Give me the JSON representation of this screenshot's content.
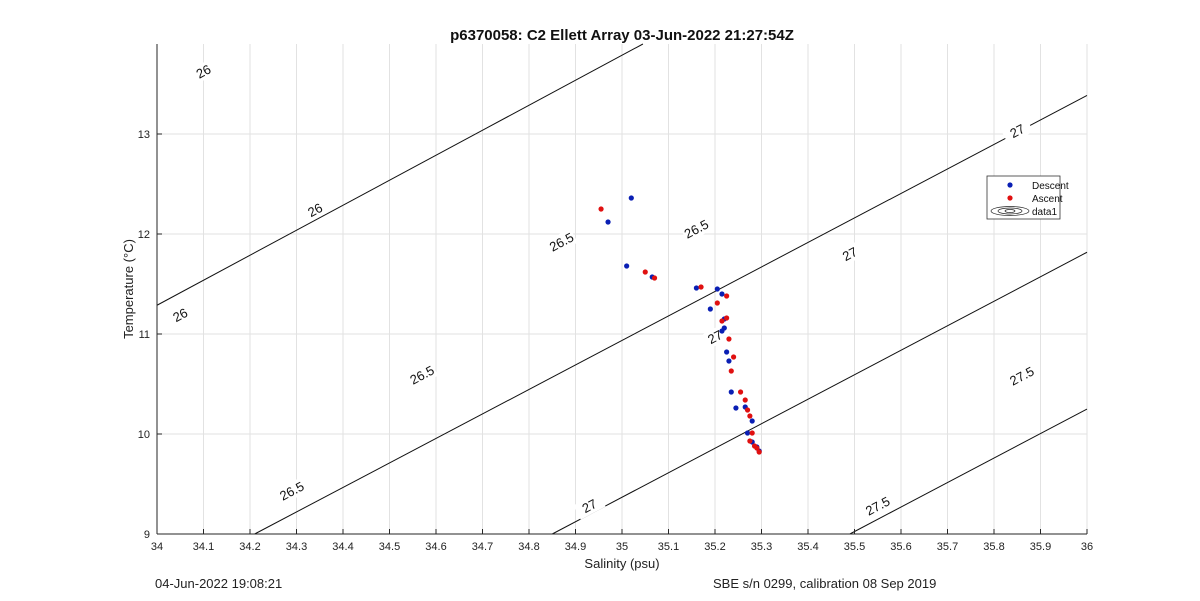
{
  "chart_data": {
    "type": "scatter",
    "title": "p6370058: C2 Ellett Array 03-Jun-2022 21:27:54Z",
    "xlabel": "Salinity (psu)",
    "ylabel": "Temperature (°C)",
    "xlim": [
      34,
      36
    ],
    "ylim": [
      9,
      13.9
    ],
    "x_ticks": [
      "34",
      "34.1",
      "34.2",
      "34.3",
      "34.4",
      "34.5",
      "34.6",
      "34.7",
      "34.8",
      "34.9",
      "35",
      "35.1",
      "35.2",
      "35.3",
      "35.4",
      "35.5",
      "35.6",
      "35.7",
      "35.8",
      "35.9",
      "36"
    ],
    "y_ticks": [
      "9",
      "10",
      "11",
      "12",
      "13"
    ],
    "grid": true,
    "legend_position": "right",
    "legend": [
      "Descent",
      "Ascent",
      "data1"
    ],
    "series": [
      {
        "name": "Descent",
        "color": "#0a1fb4",
        "points": [
          [
            35.02,
            12.36
          ],
          [
            34.97,
            12.12
          ],
          [
            35.01,
            11.68
          ],
          [
            35.065,
            11.57
          ],
          [
            35.16,
            11.46
          ],
          [
            35.205,
            11.45
          ],
          [
            35.215,
            11.4
          ],
          [
            35.19,
            11.25
          ],
          [
            35.22,
            11.15
          ],
          [
            35.22,
            11.06
          ],
          [
            35.215,
            11.03
          ],
          [
            35.225,
            10.82
          ],
          [
            35.23,
            10.73
          ],
          [
            35.235,
            10.42
          ],
          [
            35.245,
            10.26
          ],
          [
            35.265,
            10.27
          ],
          [
            35.28,
            10.13
          ],
          [
            35.27,
            10.01
          ],
          [
            35.28,
            9.92
          ],
          [
            35.29,
            9.87
          ],
          [
            35.295,
            9.83
          ]
        ]
      },
      {
        "name": "Ascent",
        "color": "#e01010",
        "points": [
          [
            34.955,
            12.25
          ],
          [
            35.05,
            11.62
          ],
          [
            35.07,
            11.56
          ],
          [
            35.17,
            11.47
          ],
          [
            35.225,
            11.38
          ],
          [
            35.205,
            11.31
          ],
          [
            35.215,
            11.13
          ],
          [
            35.225,
            11.16
          ],
          [
            35.23,
            10.95
          ],
          [
            35.24,
            10.77
          ],
          [
            35.235,
            10.63
          ],
          [
            35.255,
            10.42
          ],
          [
            35.265,
            10.34
          ],
          [
            35.27,
            10.24
          ],
          [
            35.275,
            10.18
          ],
          [
            35.28,
            10.01
          ],
          [
            35.275,
            9.93
          ],
          [
            35.285,
            9.88
          ],
          [
            35.29,
            9.86
          ],
          [
            35.295,
            9.82
          ]
        ]
      }
    ],
    "contours": [
      {
        "level": "26",
        "labels": [
          "26",
          "26",
          "26"
        ]
      },
      {
        "level": "26.5",
        "labels": [
          "26.5",
          "26.5",
          "26.5",
          "26.5"
        ]
      },
      {
        "level": "27",
        "labels": [
          "27",
          "27",
          "27",
          "27"
        ]
      },
      {
        "level": "27.5",
        "labels": [
          "27.5",
          "27.5"
        ]
      }
    ],
    "colors": {
      "contour": "#111111",
      "grid": "#e2e2e2",
      "axis": "#262626"
    }
  },
  "footer": {
    "date": "04-Jun-2022 19:08:21",
    "calibration": "SBE s/n 0299, calibration 08 Sep 2019"
  }
}
